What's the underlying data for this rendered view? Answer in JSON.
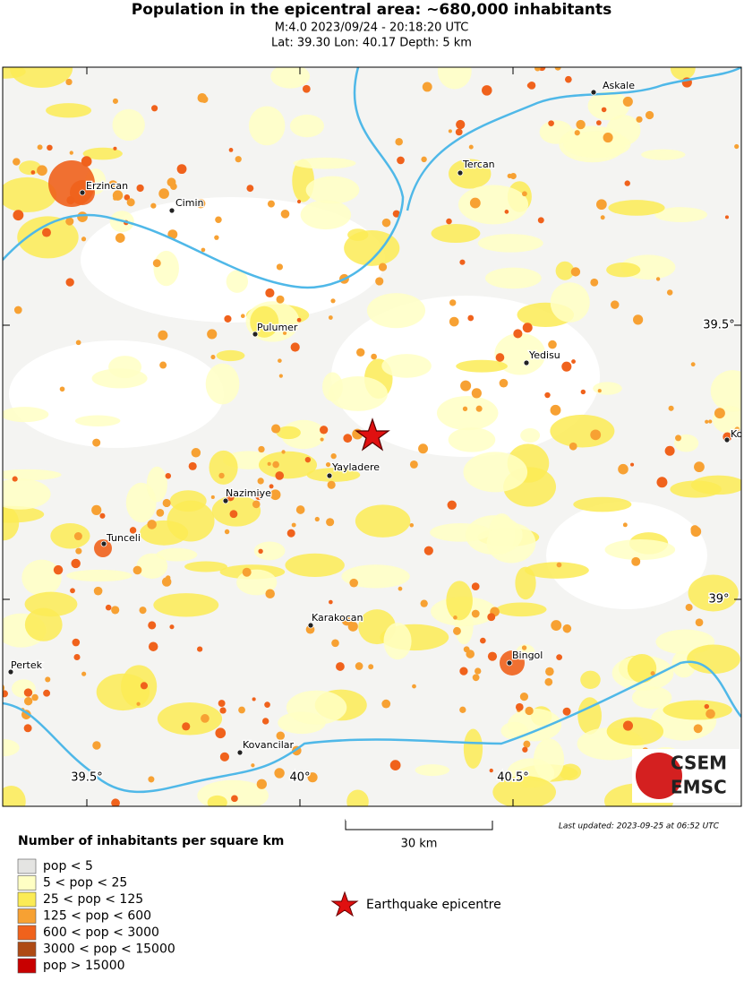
{
  "header": {
    "title": "Population in the epicentral area: ~680,000 inhabitants",
    "line1": "M:4.0 2023/09/24 - 20:18:20 UTC",
    "line2": "Lat: 39.30 Lon: 40.17 Depth: 5 km"
  },
  "map": {
    "cities": [
      {
        "label": "Askale"
      },
      {
        "label": "Tercan"
      },
      {
        "label": "Erzincan"
      },
      {
        "label": "Cimin"
      },
      {
        "label": "Pulumer"
      },
      {
        "label": "Yedisu"
      },
      {
        "label": "Ko"
      },
      {
        "label": "Yayladere"
      },
      {
        "label": "Nazimiye"
      },
      {
        "label": "Tunceli"
      },
      {
        "label": "Karakocan"
      },
      {
        "label": "Bingol"
      },
      {
        "label": "Pertek"
      },
      {
        "label": "Kovancilar"
      }
    ],
    "lat_labels": [
      "39.5°",
      "39°"
    ],
    "lon_labels": [
      "39.5°",
      "40°",
      "40.5°"
    ]
  },
  "scale_label": "30 km",
  "last_updated": "Last updated: 2023-09-25 at 06:52 UTC",
  "logo": {
    "line1": "CSEM",
    "line2": "EMSC"
  },
  "legend": {
    "title": "Number of inhabitants per square km",
    "items": [
      {
        "label": "pop < 5",
        "color": "#e4e4e2"
      },
      {
        "label": "5 < pop < 25",
        "color": "#ffffc4"
      },
      {
        "label": "25 < pop < 125",
        "color": "#fbeb55"
      },
      {
        "label": "125 < pop < 600",
        "color": "#f7a133"
      },
      {
        "label": "600 < pop < 3000",
        "color": "#f0621c"
      },
      {
        "label": "3000 < pop < 15000",
        "color": "#ae4a14"
      },
      {
        "label": "pop > 15000",
        "color": "#c80000"
      }
    ],
    "epicentre_label": "Earthquake epicentre"
  }
}
